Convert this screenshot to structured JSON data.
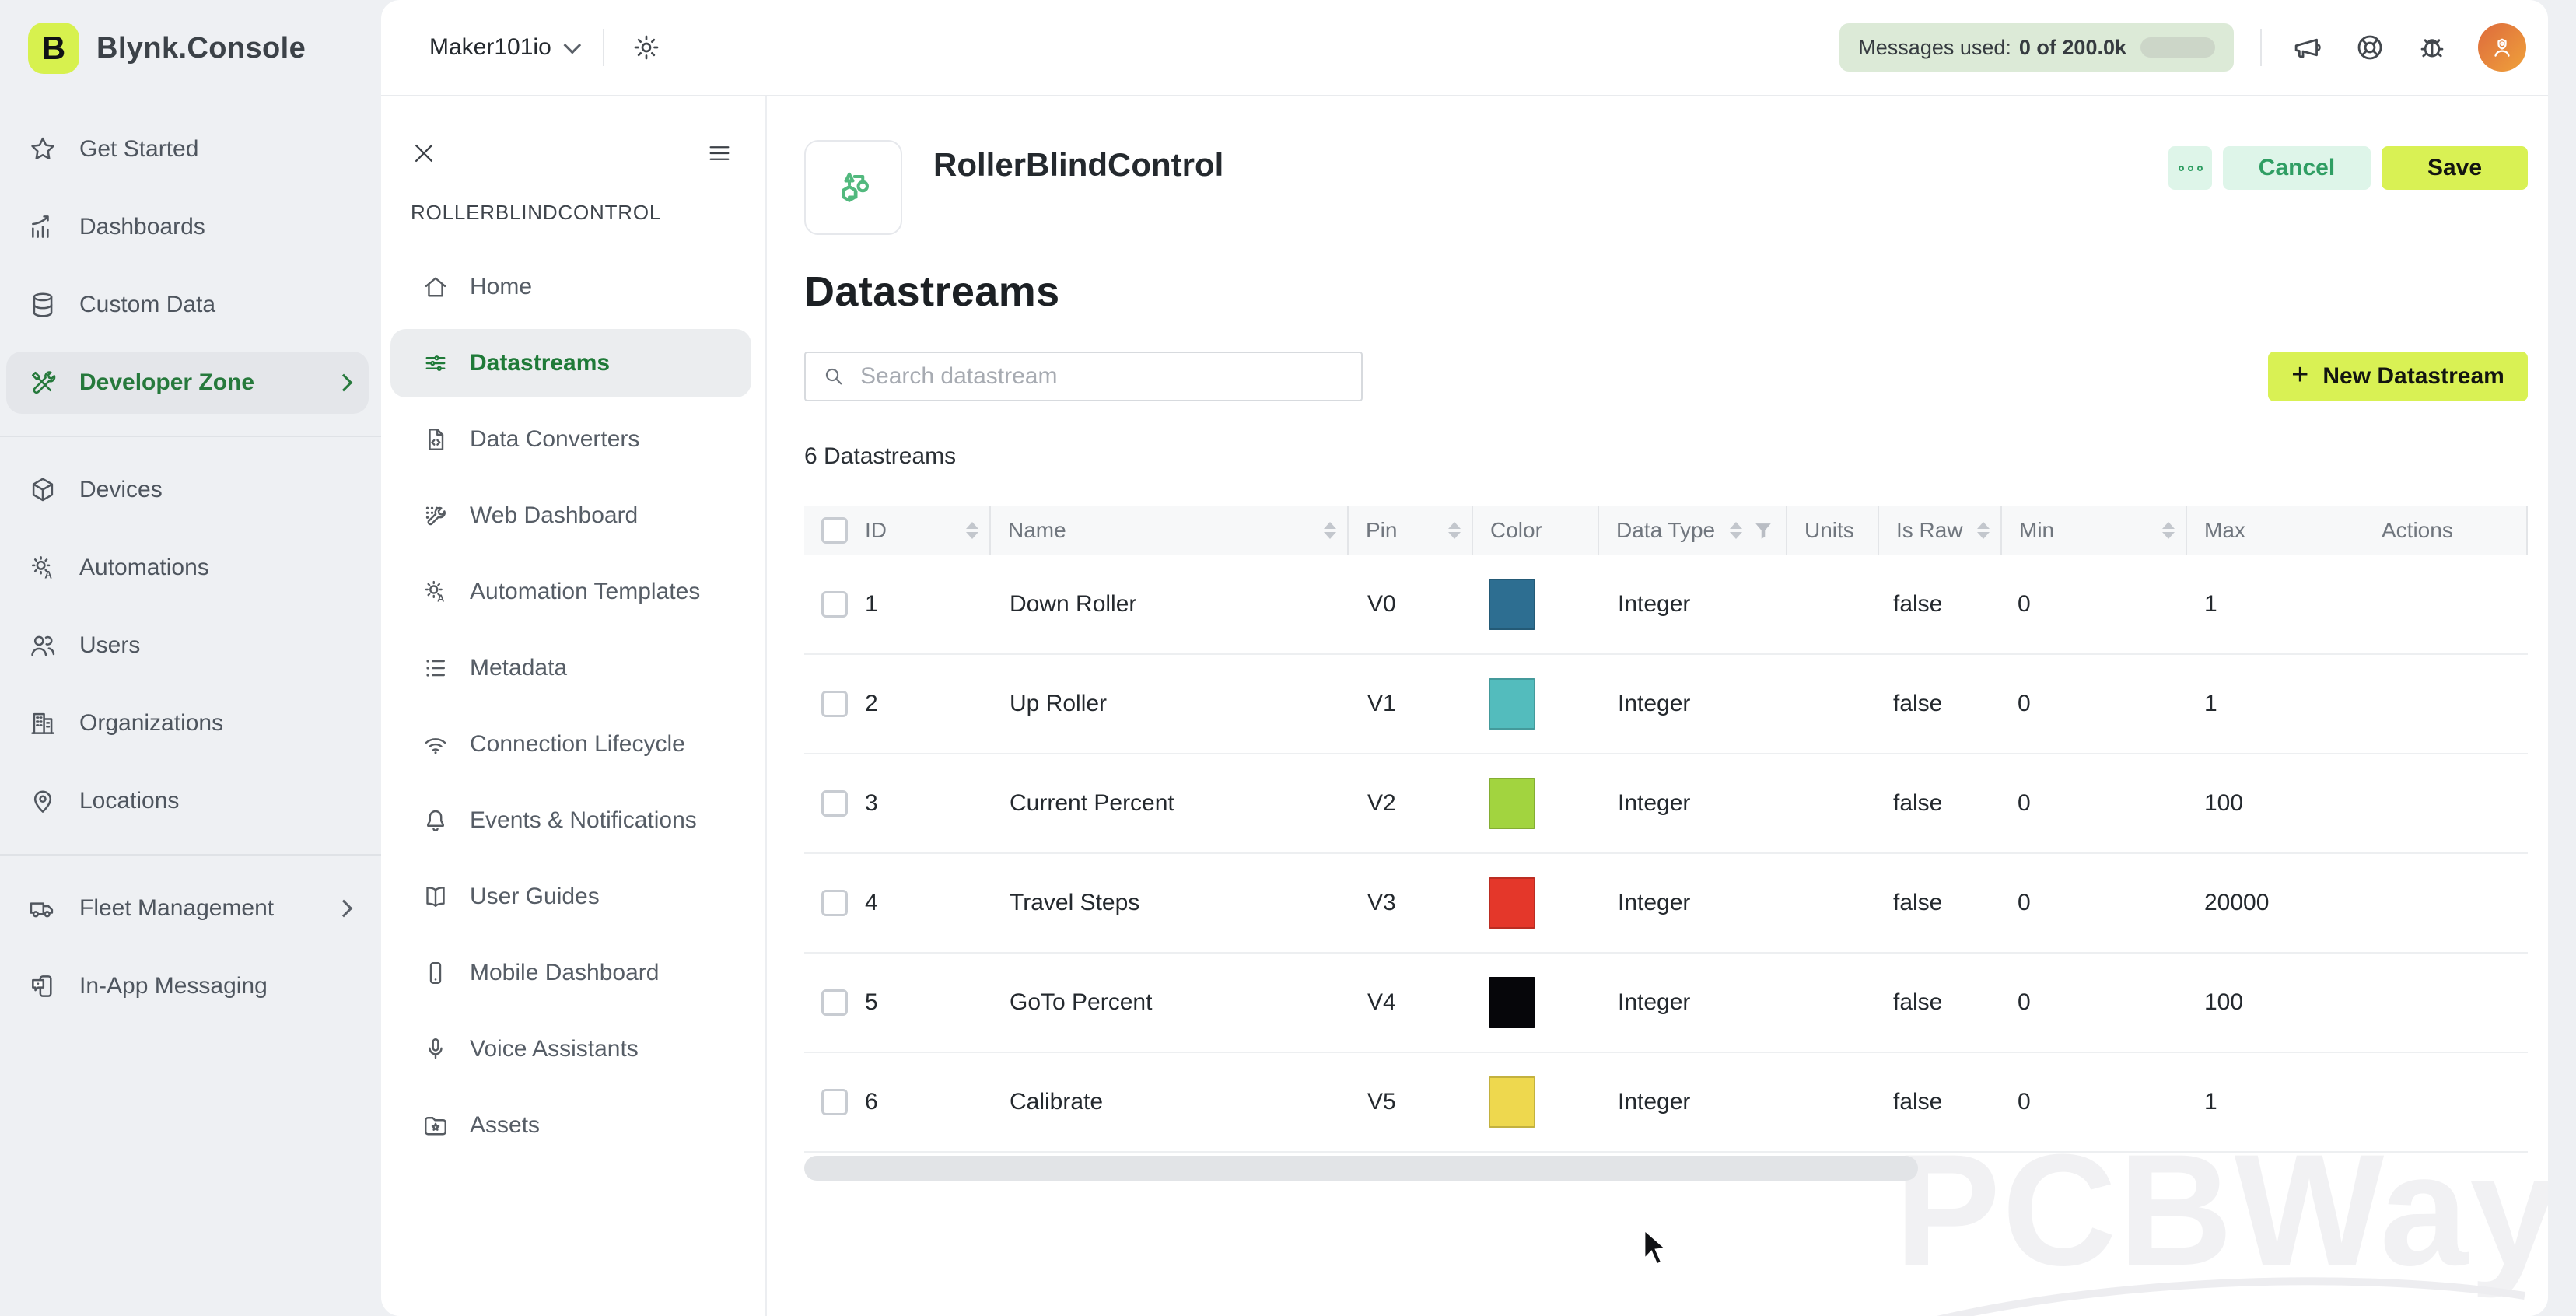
{
  "topbar": {
    "logo_letter": "B",
    "logo_text": "Blynk.Console",
    "org_name": "Maker101io",
    "messages_label": "Messages used:",
    "messages_value": "0 of 200.0k"
  },
  "colors": {
    "brand_lime": "#d7f14e",
    "brand_green": "#26793c",
    "mint_bg": "#def5e9",
    "mint_text": "#2f9e63"
  },
  "sidebar": {
    "items": [
      {
        "label": "Get Started",
        "icon": "star"
      },
      {
        "label": "Dashboards",
        "icon": "dashboards"
      },
      {
        "label": "Custom Data",
        "icon": "database"
      },
      {
        "label": "Developer Zone",
        "icon": "devzone",
        "selected": true,
        "chevron": true
      },
      {
        "label": "Devices",
        "icon": "devices",
        "divider_before": true
      },
      {
        "label": "Automations",
        "icon": "automations"
      },
      {
        "label": "Users",
        "icon": "users"
      },
      {
        "label": "Organizations",
        "icon": "organizations"
      },
      {
        "label": "Locations",
        "icon": "locations"
      },
      {
        "label": "Fleet Management",
        "icon": "fleet",
        "divider_before": true,
        "chevron": true
      },
      {
        "label": "In-App Messaging",
        "icon": "inapp"
      }
    ]
  },
  "project_nav": {
    "title": "ROLLERBLINDCONTROL",
    "items": [
      {
        "label": "Home",
        "icon": "home"
      },
      {
        "label": "Datastreams",
        "icon": "datastreams",
        "selected": true
      },
      {
        "label": "Data Converters",
        "icon": "converters"
      },
      {
        "label": "Web Dashboard",
        "icon": "webdash"
      },
      {
        "label": "Automation Templates",
        "icon": "automations"
      },
      {
        "label": "Metadata",
        "icon": "metadata"
      },
      {
        "label": "Connection Lifecycle",
        "icon": "wifi"
      },
      {
        "label": "Events & Notifications",
        "icon": "bell"
      },
      {
        "label": "User Guides",
        "icon": "book"
      },
      {
        "label": "Mobile Dashboard",
        "icon": "mobile"
      },
      {
        "label": "Voice Assistants",
        "icon": "mic"
      },
      {
        "label": "Assets",
        "icon": "assets"
      }
    ]
  },
  "main": {
    "template_name": "RollerBlindControl",
    "cancel_label": "Cancel",
    "save_label": "Save",
    "heading": "Datastreams",
    "search_placeholder": "Search datastream",
    "new_button_label": "New Datastream",
    "plus_glyph": "+",
    "count_text": "6 Datastreams",
    "watermark": "PCBWay"
  },
  "table": {
    "columns": [
      {
        "label": "ID",
        "sortable": true
      },
      {
        "label": "Name",
        "sortable": true,
        "sep": true
      },
      {
        "label": "Pin",
        "sortable": true,
        "sep": true
      },
      {
        "label": "Color",
        "sep": true
      },
      {
        "label": "Data Type",
        "sortable": true,
        "filterable": true,
        "sep": true
      },
      {
        "label": "Units",
        "sep": true
      },
      {
        "label": "Is Raw",
        "sortable": true,
        "sep": true
      },
      {
        "label": "Min",
        "sortable": true,
        "sep": true
      },
      {
        "label": "Max",
        "sep": true
      },
      {
        "label": "Actions"
      }
    ],
    "rows": [
      {
        "id": "1",
        "name": "Down Roller",
        "pin": "V0",
        "color": "#2d6e91",
        "data_type": "Integer",
        "units": "",
        "is_raw": "false",
        "min": "0",
        "max": "1",
        "actions": ""
      },
      {
        "id": "2",
        "name": "Up Roller",
        "pin": "V1",
        "color": "#53bcbd",
        "data_type": "Integer",
        "units": "",
        "is_raw": "false",
        "min": "0",
        "max": "1",
        "actions": ""
      },
      {
        "id": "3",
        "name": "Current Percent",
        "pin": "V2",
        "color": "#a2d43f",
        "data_type": "Integer",
        "units": "",
        "is_raw": "false",
        "min": "0",
        "max": "100",
        "actions": ""
      },
      {
        "id": "4",
        "name": "Travel Steps",
        "pin": "V3",
        "color": "#e4372a",
        "data_type": "Integer",
        "units": "",
        "is_raw": "false",
        "min": "0",
        "max": "20000",
        "actions": ""
      },
      {
        "id": "5",
        "name": "GoTo Percent",
        "pin": "V4",
        "color": "#06060a",
        "data_type": "Integer",
        "units": "",
        "is_raw": "false",
        "min": "0",
        "max": "100",
        "actions": ""
      },
      {
        "id": "6",
        "name": "Calibrate",
        "pin": "V5",
        "color": "#eed84e",
        "data_type": "Integer",
        "units": "",
        "is_raw": "false",
        "min": "0",
        "max": "1",
        "actions": ""
      }
    ]
  }
}
